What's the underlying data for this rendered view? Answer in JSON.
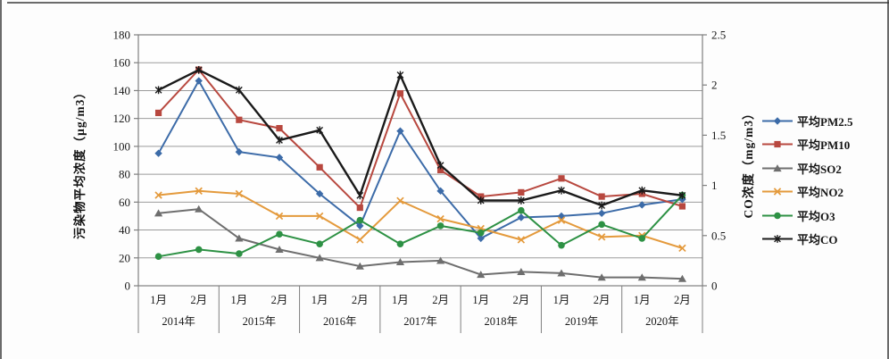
{
  "chart_data": {
    "type": "line",
    "grid": true,
    "legend_position": "right",
    "x_axis": {
      "years": [
        "2014年",
        "2015年",
        "2016年",
        "2017年",
        "2018年",
        "2019年",
        "2020年"
      ],
      "months_per_year": [
        "1月",
        "2月"
      ]
    },
    "left_axis": {
      "title": "污染物平均浓度（μg/m3）",
      "min": 0,
      "max": 180,
      "step": 20,
      "ticks": [
        "0",
        "20",
        "40",
        "60",
        "80",
        "100",
        "120",
        "140",
        "160",
        "180"
      ]
    },
    "right_axis": {
      "title": "CO浓度（mg/m3）",
      "min": 0,
      "max": 2.5,
      "step": 0.5,
      "ticks": [
        "0",
        "0.5",
        "1",
        "1.5",
        "2",
        "2.5"
      ]
    },
    "series": [
      {
        "key": "pm25",
        "name": "平均PM2.5",
        "color": "#3C6BA8",
        "marker": "diamond",
        "axis": "left",
        "values": [
          95,
          147,
          96,
          92,
          66,
          43,
          111,
          68,
          34,
          49,
          50,
          52,
          58,
          62
        ]
      },
      {
        "key": "pm10",
        "name": "平均PM10",
        "color": "#B8483F",
        "marker": "square",
        "axis": "left",
        "values": [
          124,
          155,
          119,
          113,
          85,
          56,
          138,
          83,
          64,
          67,
          77,
          64,
          66,
          57
        ]
      },
      {
        "key": "so2",
        "name": "平均SO2",
        "color": "#6E6E6E",
        "marker": "triangle",
        "axis": "left",
        "values": [
          52,
          55,
          34,
          26,
          20,
          14,
          17,
          18,
          8,
          10,
          9,
          6,
          6,
          5
        ]
      },
      {
        "key": "no2",
        "name": "平均NO2",
        "color": "#E49A3C",
        "marker": "x",
        "axis": "left",
        "values": [
          65,
          68,
          66,
          50,
          50,
          33,
          61,
          48,
          41,
          33,
          47,
          35,
          36,
          27
        ]
      },
      {
        "key": "o3",
        "name": "平均O3",
        "color": "#2D9144",
        "marker": "circle",
        "axis": "left",
        "values": [
          21,
          26,
          23,
          37,
          30,
          47,
          30,
          43,
          38,
          54,
          29,
          44,
          34,
          65
        ]
      },
      {
        "key": "co",
        "name": "平均CO",
        "color": "#1A1A1A",
        "marker": "star",
        "axis": "right",
        "values": [
          1.95,
          2.15,
          1.95,
          1.45,
          1.55,
          0.9,
          2.1,
          1.2,
          0.85,
          0.85,
          0.95,
          0.8,
          0.95,
          0.9
        ]
      }
    ],
    "style": {
      "gridline_color": "#9B9B9B",
      "plot_border_color": "#7F7F7F",
      "axis_text_color": "#1A1A1A",
      "plot_background": "#FEFEFE"
    }
  }
}
